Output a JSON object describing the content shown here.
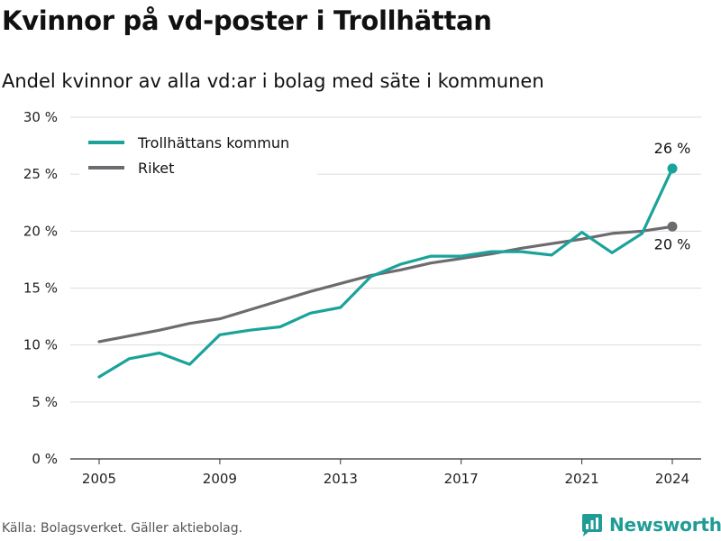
{
  "title": "Kvinnor på vd-poster i Trollhättan",
  "subtitle": "Andel kvinnor av alla vd:ar i bolag med säte i kommunen",
  "source": "Källa: Bolagsverket. Gäller aktiebolag.",
  "brand": {
    "name": "Newsworthy",
    "icon": "newsworthy-logo-icon",
    "color": "#1f9c95"
  },
  "chart_data": {
    "type": "line",
    "title": "Kvinnor på vd-poster i Trollhättan",
    "subtitle": "Andel kvinnor av alla vd:ar i bolag med säte i kommunen",
    "xlabel": "",
    "ylabel": "",
    "xlim": [
      2005,
      2024
    ],
    "ylim": [
      0,
      30
    ],
    "x_ticks": [
      2005,
      2009,
      2013,
      2017,
      2021,
      2024
    ],
    "y_ticks": [
      0,
      5,
      10,
      15,
      20,
      25,
      30
    ],
    "y_unit": " %",
    "grid": true,
    "legend_position": "top-left",
    "x": [
      2005,
      2006,
      2007,
      2008,
      2009,
      2010,
      2011,
      2012,
      2013,
      2014,
      2015,
      2016,
      2017,
      2018,
      2019,
      2020,
      2021,
      2022,
      2023,
      2024
    ],
    "series": [
      {
        "name": "Trollhättans kommun",
        "color": "#1aa39a",
        "end_label": "26 %",
        "values": [
          7.2,
          8.8,
          9.3,
          8.3,
          10.9,
          11.3,
          11.6,
          12.8,
          13.3,
          16.0,
          17.1,
          17.8,
          17.8,
          18.2,
          18.2,
          17.9,
          19.9,
          18.1,
          19.8,
          25.5
        ]
      },
      {
        "name": "Riket",
        "color": "#6d6b70",
        "end_label": "20 %",
        "values": [
          10.3,
          10.8,
          11.3,
          11.9,
          12.3,
          13.1,
          13.9,
          14.7,
          15.4,
          16.1,
          16.6,
          17.2,
          17.6,
          18.0,
          18.5,
          18.9,
          19.3,
          19.8,
          20.0,
          20.4
        ]
      }
    ]
  }
}
